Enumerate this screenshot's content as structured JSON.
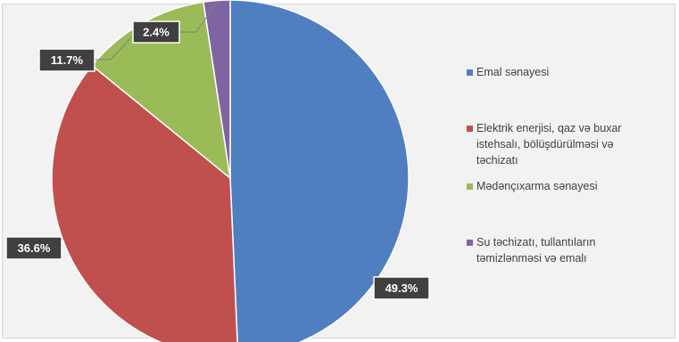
{
  "chart_data": {
    "type": "pie",
    "title": "",
    "legend_position": "right",
    "start_angle_deg": 0,
    "direction": "clockwise",
    "slices": [
      {
        "label": "Emal sənayesi",
        "legend_lines": [
          "Emal sənayesi"
        ],
        "value": 49.3,
        "display": "49.3%",
        "color": "#4f7fc0"
      },
      {
        "label": "Elektrik enerjisi, qaz və buxar istehsalı, bölüşdürülməsi və təchizatı",
        "legend_lines": [
          "Elektrik enerjisi, qaz və buxar",
          "istehsalı, bölüşdürülməsi və",
          "təchizatı"
        ],
        "value": 36.6,
        "display": "36.6%",
        "color": "#c0504d"
      },
      {
        "label": "Mədənçıxarma sənayesi",
        "legend_lines": [
          "Mədənçıxarma sənayesi"
        ],
        "value": 11.7,
        "display": "11.7%",
        "color": "#9bbb59"
      },
      {
        "label": "Su təchizatı, tullantıların təmizlənməsi və emalı",
        "legend_lines": [
          "Su təchizatı, tullantıların",
          "təmizlənməsi və emalı"
        ],
        "value": 2.4,
        "display": "2.4%",
        "color": "#8064a2"
      }
    ],
    "label_style": {
      "background": "#404040",
      "text_color": "#ffffff"
    }
  }
}
